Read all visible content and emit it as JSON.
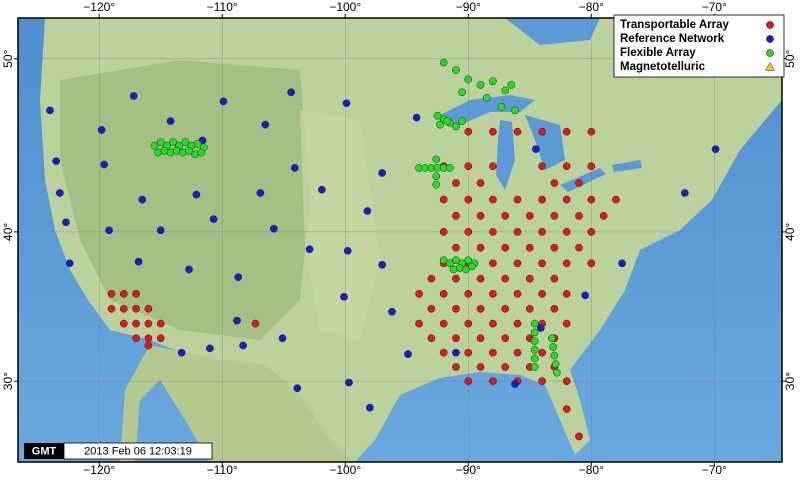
{
  "map": {
    "xlim": [
      -126.6,
      -64.5
    ],
    "ylim": [
      24.1,
      52.1
    ],
    "lon_ticks": [
      {
        "value": -120,
        "label": "−120°"
      },
      {
        "value": -110,
        "label": "−110°"
      },
      {
        "value": -100,
        "label": "−100°"
      },
      {
        "value": -90,
        "label": "−90°"
      },
      {
        "value": -80,
        "label": "−80°"
      },
      {
        "value": -70,
        "label": "−70°"
      }
    ],
    "lat_ticks": [
      {
        "value": 30,
        "label": "30°"
      },
      {
        "value": 40,
        "label": "40°"
      },
      {
        "value": 50,
        "label": "50°"
      }
    ],
    "logo": "GMT",
    "timestamp": "2013 Feb 06 12:03:19",
    "series": [
      {
        "name": "Transportable Array",
        "color": "#e8141b",
        "marker": "circle",
        "points": [
          [
            -90,
            46
          ],
          [
            -88,
            46
          ],
          [
            -86,
            46
          ],
          [
            -84,
            46
          ],
          [
            -82,
            46
          ],
          [
            -80,
            46
          ],
          [
            -92,
            44
          ],
          [
            -90,
            44
          ],
          [
            -88,
            44
          ],
          [
            -84,
            44
          ],
          [
            -82,
            44
          ],
          [
            -80,
            44
          ],
          [
            -91,
            43
          ],
          [
            -89,
            43
          ],
          [
            -83,
            43
          ],
          [
            -81,
            43
          ],
          [
            -92,
            42
          ],
          [
            -90,
            42
          ],
          [
            -88,
            42
          ],
          [
            -86,
            42
          ],
          [
            -84,
            42
          ],
          [
            -82,
            42
          ],
          [
            -80,
            42
          ],
          [
            -78,
            42
          ],
          [
            -91,
            41
          ],
          [
            -89,
            41
          ],
          [
            -87,
            41
          ],
          [
            -85,
            41
          ],
          [
            -83,
            41
          ],
          [
            -81,
            41
          ],
          [
            -79,
            41
          ],
          [
            -92,
            40
          ],
          [
            -90,
            40
          ],
          [
            -88,
            40
          ],
          [
            -86,
            40
          ],
          [
            -84,
            40
          ],
          [
            -82,
            40
          ],
          [
            -80,
            40
          ],
          [
            -91,
            39
          ],
          [
            -89,
            39
          ],
          [
            -87,
            39
          ],
          [
            -85,
            39
          ],
          [
            -83,
            39
          ],
          [
            -81,
            39
          ],
          [
            -92,
            38
          ],
          [
            -90,
            38
          ],
          [
            -88,
            38
          ],
          [
            -86,
            38
          ],
          [
            -84,
            38
          ],
          [
            -82,
            38
          ],
          [
            -80,
            38
          ],
          [
            -93,
            37
          ],
          [
            -91,
            37
          ],
          [
            -89,
            37
          ],
          [
            -87,
            37
          ],
          [
            -85,
            37
          ],
          [
            -83,
            37
          ],
          [
            -94,
            36
          ],
          [
            -92,
            36
          ],
          [
            -90,
            36
          ],
          [
            -88,
            36
          ],
          [
            -86,
            36
          ],
          [
            -84,
            36
          ],
          [
            -82,
            36
          ],
          [
            -93,
            35
          ],
          [
            -91,
            35
          ],
          [
            -89,
            35
          ],
          [
            -87,
            35
          ],
          [
            -85,
            35
          ],
          [
            -83,
            35
          ],
          [
            -94,
            34
          ],
          [
            -92,
            34
          ],
          [
            -90,
            34
          ],
          [
            -88,
            34
          ],
          [
            -86,
            34
          ],
          [
            -84,
            34
          ],
          [
            -82,
            34
          ],
          [
            -93,
            33
          ],
          [
            -91,
            33
          ],
          [
            -89,
            33
          ],
          [
            -87,
            33
          ],
          [
            -85,
            33
          ],
          [
            -83,
            33
          ],
          [
            -92,
            32
          ],
          [
            -90,
            32
          ],
          [
            -88,
            32
          ],
          [
            -86,
            32
          ],
          [
            -84,
            32
          ],
          [
            -91,
            31
          ],
          [
            -89,
            31
          ],
          [
            -87,
            31
          ],
          [
            -85,
            31
          ],
          [
            -83,
            31
          ],
          [
            -90,
            30
          ],
          [
            -88,
            30
          ],
          [
            -86,
            30
          ],
          [
            -84,
            30
          ],
          [
            -82,
            30
          ],
          [
            -82,
            28
          ],
          [
            -81,
            26
          ],
          [
            -119,
            36
          ],
          [
            -118,
            36
          ],
          [
            -117,
            36
          ],
          [
            -119,
            35
          ],
          [
            -118,
            35
          ],
          [
            -117,
            35
          ],
          [
            -116,
            35
          ],
          [
            -118,
            34
          ],
          [
            -117,
            34
          ],
          [
            -116,
            34
          ],
          [
            -115,
            34
          ],
          [
            -117,
            33
          ],
          [
            -116,
            33
          ],
          [
            -115,
            33
          ],
          [
            -116,
            32.5
          ],
          [
            -107.3,
            34.0
          ]
        ]
      },
      {
        "name": "Reference Network",
        "color": "#1a1ad6",
        "marker": "circle",
        "points": [
          [
            -124.0,
            47.2
          ],
          [
            -119.8,
            46.1
          ],
          [
            -117.2,
            48.0
          ],
          [
            -114.2,
            46.6
          ],
          [
            -109.9,
            47.7
          ],
          [
            -104.4,
            48.2
          ],
          [
            -99.9,
            47.6
          ],
          [
            -123.5,
            44.3
          ],
          [
            -119.6,
            44.1
          ],
          [
            -111.6,
            45.5
          ],
          [
            -106.5,
            46.4
          ],
          [
            -104.1,
            43.9
          ],
          [
            -97.0,
            43.6
          ],
          [
            -123.2,
            42.4
          ],
          [
            -116.5,
            42.0
          ],
          [
            -112.1,
            42.3
          ],
          [
            -106.9,
            42.4
          ],
          [
            -101.9,
            42.6
          ],
          [
            -122.7,
            40.6
          ],
          [
            -119.2,
            40.1
          ],
          [
            -115.0,
            40.1
          ],
          [
            -110.7,
            40.8
          ],
          [
            -105.8,
            40.2
          ],
          [
            -102.9,
            38.9
          ],
          [
            -98.2,
            41.3
          ],
          [
            -122.4,
            38.0
          ],
          [
            -116.8,
            38.1
          ],
          [
            -112.7,
            37.6
          ],
          [
            -108.7,
            37.1
          ],
          [
            -99.8,
            38.8
          ],
          [
            -97.0,
            37.9
          ],
          [
            -108.8,
            34.2
          ],
          [
            -105.1,
            33.0
          ],
          [
            -100.1,
            35.8
          ],
          [
            -96.2,
            34.8
          ],
          [
            -113.3,
            32.0
          ],
          [
            -111.0,
            32.3
          ],
          [
            -108.3,
            32.5
          ],
          [
            -103.9,
            29.5
          ],
          [
            -99.7,
            29.9
          ],
          [
            -98.0,
            28.1
          ],
          [
            -94.9,
            31.9
          ],
          [
            -91.0,
            32.0
          ],
          [
            -84.5,
            45.0
          ],
          [
            -69.9,
            45.0
          ],
          [
            -72.4,
            42.4
          ],
          [
            -77.5,
            38.0
          ],
          [
            -80.5,
            35.9
          ],
          [
            -84.1,
            33.7
          ],
          [
            -86.2,
            29.8
          ],
          [
            -94.2,
            46.8
          ]
        ]
      },
      {
        "name": "Flexible Array",
        "color": "#22e01e",
        "marker": "circle",
        "points": [
          [
            -115.5,
            45.2
          ],
          [
            -115,
            45.4
          ],
          [
            -114.5,
            45.2
          ],
          [
            -114,
            45.4
          ],
          [
            -113.5,
            45.2
          ],
          [
            -113,
            45.4
          ],
          [
            -112.5,
            45.2
          ],
          [
            -112,
            45.3
          ],
          [
            -111.5,
            45.1
          ],
          [
            -115.2,
            44.8
          ],
          [
            -114.7,
            44.9
          ],
          [
            -114.2,
            44.8
          ],
          [
            -113.7,
            44.9
          ],
          [
            -113.2,
            44.8
          ],
          [
            -112.7,
            44.9
          ],
          [
            -112.2,
            44.7
          ],
          [
            -111.7,
            44.8
          ],
          [
            -92,
            49.8
          ],
          [
            -91,
            49.4
          ],
          [
            -90,
            48.9
          ],
          [
            -89,
            48.6
          ],
          [
            -88,
            48.8
          ],
          [
            -87,
            48.3
          ],
          [
            -86.5,
            48.6
          ],
          [
            -90.5,
            48.2
          ],
          [
            -88.5,
            47.9
          ],
          [
            -87.3,
            47.4
          ],
          [
            -86.2,
            47.2
          ],
          [
            -92.5,
            46.9
          ],
          [
            -92,
            46.7
          ],
          [
            -91.5,
            46.5
          ],
          [
            -91,
            46.3
          ],
          [
            -92.3,
            46.4
          ],
          [
            -91.7,
            46.6
          ],
          [
            -90.5,
            46.6
          ],
          [
            -94,
            43.9
          ],
          [
            -93.5,
            43.9
          ],
          [
            -93,
            43.9
          ],
          [
            -92.5,
            43.9
          ],
          [
            -92,
            43.9
          ],
          [
            -91.5,
            43.9
          ],
          [
            -92.6,
            44.4
          ],
          [
            -92.6,
            43.4
          ],
          [
            -92.6,
            42.9
          ],
          [
            -92,
            38.2
          ],
          [
            -91.5,
            38
          ],
          [
            -91,
            38.2
          ],
          [
            -90.5,
            38
          ],
          [
            -90,
            38.2
          ],
          [
            -89.5,
            38
          ],
          [
            -91.2,
            37.6
          ],
          [
            -90.7,
            37.7
          ],
          [
            -90.2,
            37.6
          ],
          [
            -89.7,
            37.8
          ],
          [
            -84.6,
            34
          ],
          [
            -84.6,
            33.4
          ],
          [
            -84.6,
            32.8
          ],
          [
            -84.6,
            32.2
          ],
          [
            -84.6,
            31.6
          ],
          [
            -84.6,
            31
          ],
          [
            -83.2,
            33
          ],
          [
            -83.1,
            32.4
          ],
          [
            -83,
            31.8
          ],
          [
            -82.9,
            31.2
          ],
          [
            -82.8,
            30.6
          ]
        ]
      },
      {
        "name": "Magnetotelluric",
        "color": "#f5c518",
        "marker": "triangle",
        "points": []
      }
    ]
  }
}
